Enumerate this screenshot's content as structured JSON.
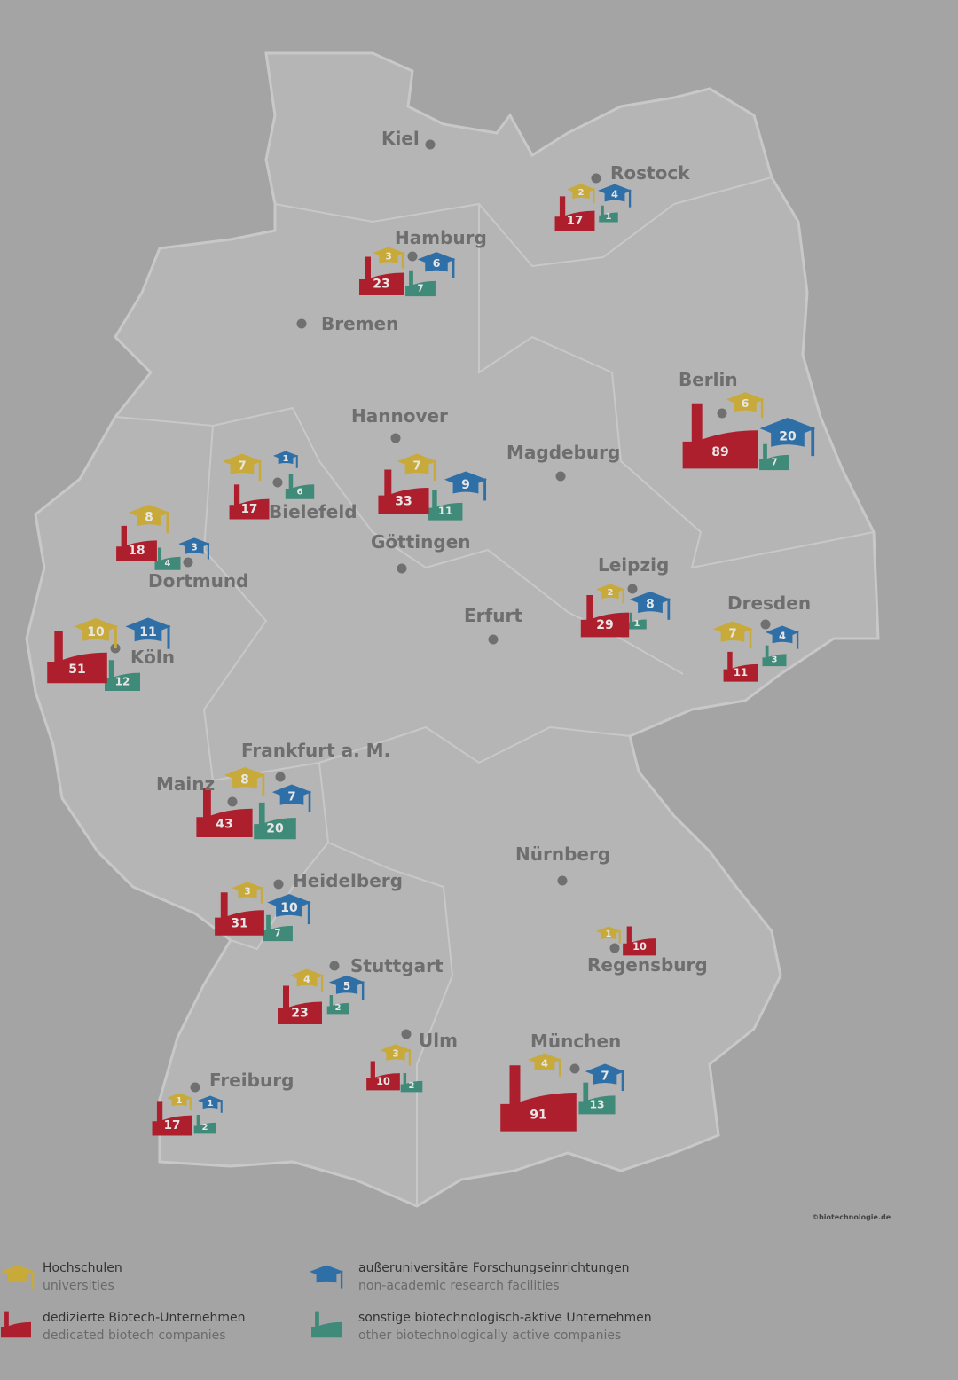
{
  "colors": {
    "background": "#a4a4a4",
    "land": "#b5b5b5",
    "border": "#c8c8c8",
    "universities": "#c8aa3a",
    "research": "#2f6fa8",
    "dedicated": "#ae1f2d",
    "other": "#3f8a78",
    "city_text": "#6e6e6e",
    "dot": "#707070"
  },
  "credit": "©biotechnologie.de",
  "cities": [
    {
      "name": "Kiel"
    },
    {
      "name": "Rostock",
      "universities": 2,
      "research": 4,
      "dedicated": 17,
      "other": 1
    },
    {
      "name": "Hamburg",
      "universities": 3,
      "research": 6,
      "dedicated": 23,
      "other": 7
    },
    {
      "name": "Bremen"
    },
    {
      "name": "Berlin",
      "universities": 6,
      "research": 20,
      "dedicated": 89,
      "other": 7
    },
    {
      "name": "Hannover",
      "universities": 7,
      "research": 9,
      "dedicated": 33,
      "other": 11
    },
    {
      "name": "Magdeburg"
    },
    {
      "name": "Bielefeld",
      "universities": 7,
      "research": 1,
      "dedicated": 17,
      "other": 6
    },
    {
      "name": "Dortmund",
      "universities": 8,
      "research": 3,
      "dedicated": 18,
      "other": 4
    },
    {
      "name": "Göttingen"
    },
    {
      "name": "Leipzig",
      "universities": 2,
      "research": 8,
      "dedicated": 29,
      "other": 1
    },
    {
      "name": "Erfurt"
    },
    {
      "name": "Dresden",
      "universities": 7,
      "research": 4,
      "dedicated": 11,
      "other": 3
    },
    {
      "name": "Köln",
      "universities": 10,
      "research": 11,
      "dedicated": 51,
      "other": 12
    },
    {
      "name": "Frankfurt a. M."
    },
    {
      "name": "Mainz",
      "universities": 8,
      "research": 7,
      "dedicated": 43,
      "other": 20
    },
    {
      "name": "Heidelberg",
      "universities": 3,
      "research": 10,
      "dedicated": 31,
      "other": 7
    },
    {
      "name": "Nürnberg"
    },
    {
      "name": "Regensburg",
      "universities": 1,
      "dedicated": 10
    },
    {
      "name": "Stuttgart",
      "universities": 4,
      "research": 5,
      "dedicated": 23,
      "other": 2
    },
    {
      "name": "Ulm",
      "universities": 3,
      "dedicated": 10,
      "other": 2
    },
    {
      "name": "München",
      "universities": 4,
      "research": 7,
      "dedicated": 91,
      "other": 13
    },
    {
      "name": "Freiburg",
      "universities": 1,
      "research": 1,
      "dedicated": 17,
      "other": 2
    }
  ],
  "legend": {
    "universities": {
      "de": "Hochschulen",
      "en": "universities",
      "icon": "graduation-cap-icon"
    },
    "research": {
      "de": "außeruniversitäre Forschungseinrichtungen",
      "en": "non-academic research facilities",
      "icon": "graduation-cap-icon"
    },
    "dedicated": {
      "de": "dedizierte Biotech-Unternehmen",
      "en": "dedicated biotech companies",
      "icon": "factory-icon"
    },
    "other": {
      "de": "sonstige biotechnologisch-aktive Unternehmen",
      "en": "other biotechnologically active companies",
      "icon": "factory-icon"
    }
  }
}
